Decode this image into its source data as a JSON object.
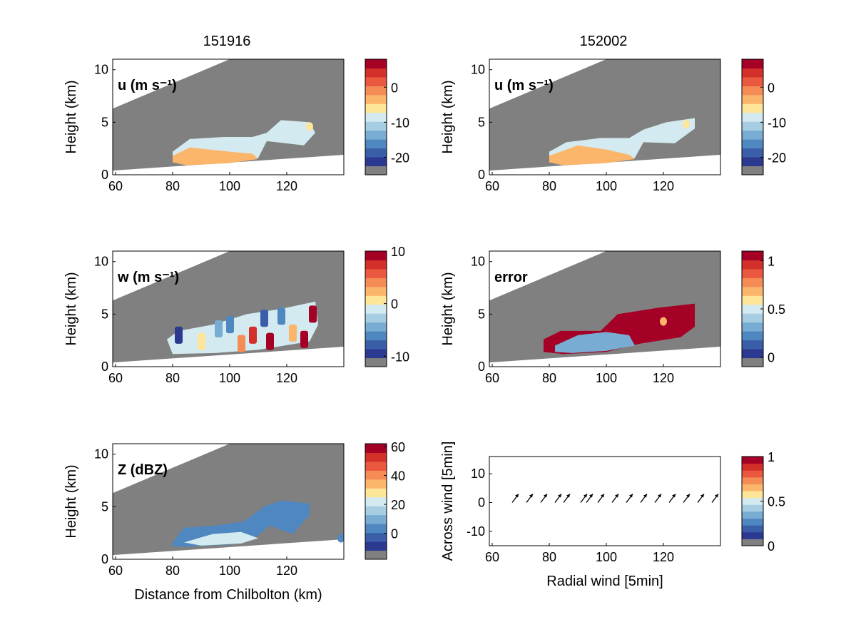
{
  "column_titles": [
    "151916",
    "152002"
  ],
  "colors": {
    "gray": "#808080",
    "bar_palette": [
      "#808080",
      "#2b3990",
      "#3a5fa8",
      "#4f87c0",
      "#78acd2",
      "#a6cde2",
      "#d3eaf0",
      "#fde59a",
      "#fbb66c",
      "#f58b55",
      "#e9583f",
      "#d3302a",
      "#a50026"
    ]
  },
  "chart_data": [
    {
      "id": "u-151916",
      "type": "heatmap",
      "panel_label": "u (m s⁻¹)",
      "ylabel": "Height (km)",
      "xlabel": "",
      "xlim": [
        59,
        140
      ],
      "ylim": [
        0,
        11
      ],
      "xticks": [
        60,
        80,
        100,
        120
      ],
      "yticks": [
        0,
        5,
        10
      ],
      "colorbar": {
        "ticks": [
          0,
          -10,
          -20
        ],
        "range": [
          -25,
          8
        ]
      }
    },
    {
      "id": "u-152002",
      "type": "heatmap",
      "panel_label": "u (m s⁻¹)",
      "ylabel": "Height (km)",
      "xlabel": "",
      "xlim": [
        59,
        140
      ],
      "ylim": [
        0,
        11
      ],
      "xticks": [
        60,
        80,
        100,
        120
      ],
      "yticks": [
        0,
        5,
        10
      ],
      "colorbar": {
        "ticks": [
          0,
          -10,
          -20
        ],
        "range": [
          -25,
          8
        ]
      }
    },
    {
      "id": "w-151916",
      "type": "heatmap",
      "panel_label": "w (m s⁻¹)",
      "ylabel": "Height (km)",
      "xlabel": "",
      "xlim": [
        59,
        140
      ],
      "ylim": [
        0,
        11
      ],
      "xticks": [
        60,
        80,
        100,
        120
      ],
      "yticks": [
        0,
        5,
        10
      ],
      "colorbar": {
        "ticks": [
          10,
          0,
          -10
        ],
        "range": [
          -12,
          10
        ]
      }
    },
    {
      "id": "error-152002",
      "type": "heatmap",
      "panel_label": "error",
      "ylabel": "Height (km)",
      "xlabel": "",
      "xlim": [
        59,
        140
      ],
      "ylim": [
        0,
        11
      ],
      "xticks": [
        60,
        80,
        100,
        120
      ],
      "yticks": [
        0,
        5,
        10
      ],
      "colorbar": {
        "ticks": [
          1,
          0.5,
          0
        ],
        "range": [
          -0.1,
          1.1
        ]
      }
    },
    {
      "id": "z-151916",
      "type": "heatmap",
      "panel_label": "Z (dBZ)",
      "ylabel": "Height (km)",
      "xlabel": "Distance from Chilbolton (km)",
      "xlim": [
        59,
        140
      ],
      "ylim": [
        0,
        11
      ],
      "xticks": [
        60,
        80,
        100,
        120
      ],
      "yticks": [
        0,
        5,
        10
      ],
      "colorbar": {
        "ticks": [
          60,
          40,
          20,
          0
        ],
        "range": [
          -18,
          62
        ]
      }
    },
    {
      "id": "quiver",
      "type": "scatter",
      "panel_label": "",
      "ylabel": "Across wind [5min]",
      "xlabel": "Radial wind [5min]",
      "xlim": [
        59,
        140
      ],
      "ylim": [
        -15,
        16
      ],
      "xticks": [
        60,
        80,
        100,
        120
      ],
      "yticks": [
        10,
        0,
        -10
      ],
      "x": [
        67,
        72,
        77,
        82,
        85,
        91,
        93,
        97,
        102,
        107,
        112,
        117,
        122,
        127,
        132,
        137
      ],
      "y": [
        0,
        0,
        0,
        0,
        0,
        0,
        0,
        0,
        0,
        0,
        0,
        0,
        0,
        0,
        0,
        0
      ],
      "colorbar": {
        "ticks": [
          1,
          0.5,
          0
        ],
        "range": [
          0,
          1
        ]
      }
    }
  ]
}
